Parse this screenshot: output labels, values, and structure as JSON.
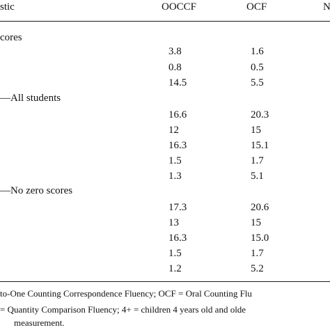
{
  "table": {
    "header": {
      "col0": "stic",
      "col1": "OOCCF",
      "col2": "OCF",
      "col3": "N"
    },
    "sections": [
      {
        "label": "cores",
        "rows": [
          [
            "3.8",
            "1.6"
          ],
          [
            "0.8",
            "0.5"
          ],
          [
            "14.5",
            "5.5"
          ]
        ]
      },
      {
        "label": "—All students",
        "rows": [
          [
            "16.6",
            "20.3"
          ],
          [
            "12",
            "15"
          ],
          [
            "16.3",
            "15.1"
          ],
          [
            "1.5",
            "1.7"
          ],
          [
            "1.3",
            "5.1"
          ]
        ]
      },
      {
        "label": "—No zero scores",
        "rows": [
          [
            "17.3",
            "20.6"
          ],
          [
            "13",
            "15"
          ],
          [
            "16.3",
            "15.0"
          ],
          [
            "1.5",
            "1.7"
          ],
          [
            "1.2",
            "5.2"
          ]
        ]
      }
    ]
  },
  "footnote": {
    "line1": "to-One Counting Correspondence Fluency; OCF = Oral Counting Flu",
    "line2": "= Quantity Comparison Fluency; 4+ = children 4 years old and olde",
    "line3": "measurement."
  }
}
